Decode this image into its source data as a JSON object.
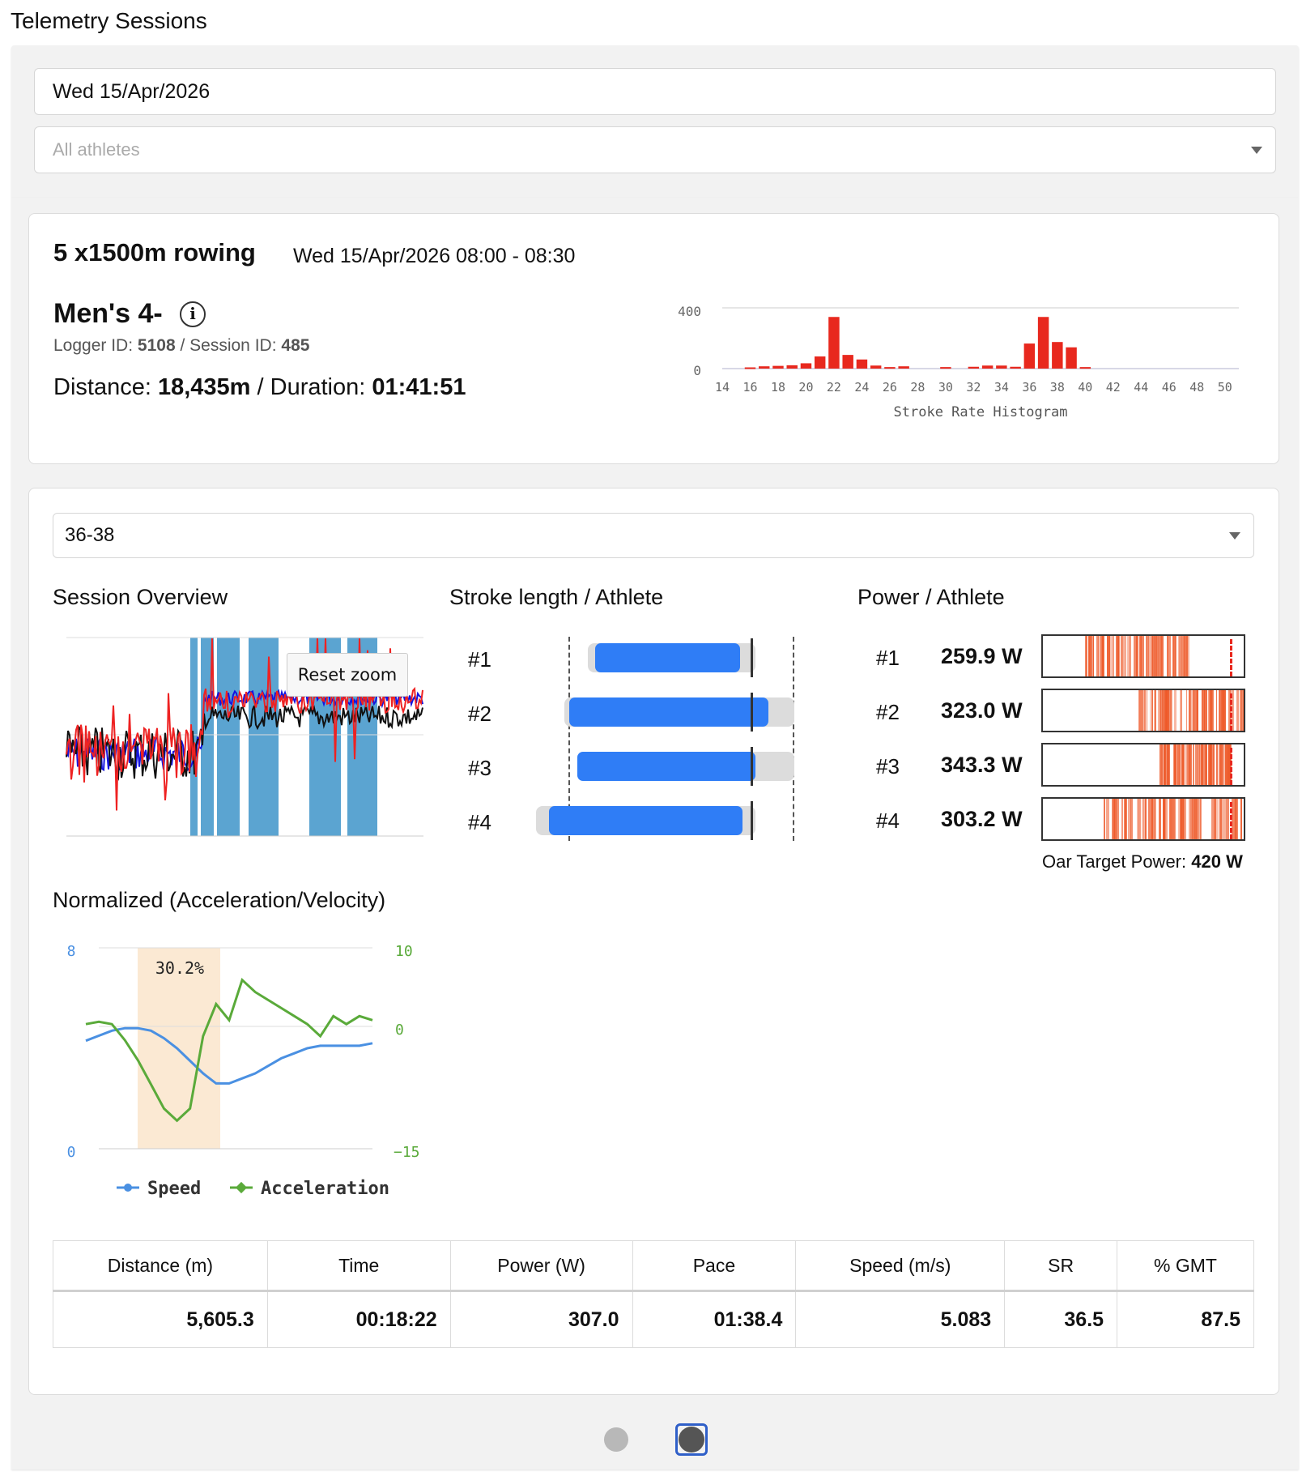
{
  "page": {
    "title": "Telemetry Sessions"
  },
  "filters": {
    "date": "Wed 15/Apr/2026",
    "athletes_placeholder": "All athletes"
  },
  "session": {
    "name": "5 x1500m rowing",
    "datetime": "Wed 15/Apr/2026 08:00 - 08:30",
    "boat": "Men's 4-",
    "logger_label": "Logger ID:",
    "logger_id": "5108",
    "sep": "/",
    "session_label": "Session ID:",
    "session_id": "485",
    "distance_label": "Distance:",
    "distance": "18,435m",
    "duration_label": "/ Duration:",
    "duration": "01:41:51"
  },
  "histogram": {
    "y_ticks": [
      "400",
      "0"
    ],
    "x_ticks": [
      "14",
      "16",
      "18",
      "20",
      "22",
      "24",
      "26",
      "28",
      "30",
      "32",
      "34",
      "36",
      "38",
      "40",
      "42",
      "44",
      "46",
      "48",
      "50"
    ],
    "xlabel": "Stroke Rate Histogram"
  },
  "chart_data": [
    {
      "type": "bar",
      "xlabel": "Stroke Rate Histogram",
      "color": "#e8281e",
      "xlim": [
        14,
        51
      ],
      "ylim": [
        0,
        400
      ],
      "x": [
        16,
        17,
        18,
        19,
        20,
        21,
        22,
        23,
        24,
        25,
        26,
        27,
        30,
        32,
        33,
        34,
        35,
        36,
        37,
        38,
        39,
        40
      ],
      "values": [
        8,
        15,
        18,
        22,
        35,
        80,
        340,
        90,
        60,
        20,
        10,
        15,
        10,
        12,
        20,
        20,
        12,
        165,
        340,
        175,
        140,
        10
      ]
    },
    {
      "type": "line",
      "title": "Normalized (Acceleration/Velocity)",
      "ylim_left": [
        0,
        8
      ],
      "ylim_right": [
        -15,
        10
      ],
      "band_label": "30.2%",
      "series": [
        {
          "name": "Speed",
          "color": "#4a90e2",
          "values": [
            4.3,
            4.5,
            4.7,
            4.8,
            4.8,
            4.7,
            4.4,
            4.0,
            3.5,
            3.0,
            2.6,
            2.6,
            2.8,
            3.0,
            3.3,
            3.6,
            3.8,
            4.0,
            4.1,
            4.1,
            4.1,
            4.1,
            4.2
          ]
        },
        {
          "name": "Acceleration",
          "color": "#5aaa3a",
          "values": [
            0.5,
            0.8,
            0.5,
            -1.5,
            -4,
            -7,
            -10,
            -11.5,
            -10,
            -1,
            3,
            1,
            6,
            4.5,
            3.5,
            2.5,
            1.5,
            0.5,
            -1,
            1.5,
            0.5,
            1.5,
            1
          ]
        }
      ]
    }
  ],
  "interval": {
    "selected": "36-38"
  },
  "overview": {
    "title": "Session Overview",
    "reset_label": "Reset zoom"
  },
  "stroke": {
    "title": "Stroke length / Athlete",
    "athletes": [
      {
        "label": "#1",
        "range_from": 0.2,
        "range_to": 0.85,
        "bar_from": 0.23,
        "bar_to": 0.79,
        "marker": 0.8
      },
      {
        "label": "#2",
        "range_from": 0.11,
        "range_to": 1.0,
        "bar_from": 0.13,
        "bar_to": 0.9,
        "marker": 0.8
      },
      {
        "label": "#3",
        "range_from": 0.16,
        "range_to": 1.0,
        "bar_from": 0.16,
        "bar_to": 0.85,
        "marker": 0.8
      },
      {
        "label": "#4",
        "range_from": 0.0,
        "range_to": 0.85,
        "bar_from": 0.05,
        "bar_to": 0.8,
        "marker": 0.8
      }
    ]
  },
  "power": {
    "title": "Power / Athlete",
    "athletes": [
      {
        "label": "#1",
        "value": "259.9 W",
        "fill_from": 0.2,
        "fill_to": 0.72
      },
      {
        "label": "#2",
        "value": "323.0 W",
        "fill_from": 0.45,
        "fill_to": 1.0
      },
      {
        "label": "#3",
        "value": "343.3 W",
        "fill_from": 0.58,
        "fill_to": 0.93
      },
      {
        "label": "#4",
        "value": "303.2 W",
        "fill_from": 0.3,
        "fill_to": 1.0
      }
    ],
    "target_label": "Oar Target Power:",
    "target_value": "420 W"
  },
  "normalized": {
    "title": "Normalized (Acceleration/Velocity)",
    "left_ticks": [
      "8",
      "0"
    ],
    "right_ticks": [
      "10",
      "0",
      "−15"
    ],
    "band_label": "30.2%",
    "legend_speed": "Speed",
    "legend_accel": "Acceleration"
  },
  "stats": {
    "headers": [
      "Distance (m)",
      "Time",
      "Power (W)",
      "Pace",
      "Speed (m/s)",
      "SR",
      "% GMT"
    ],
    "values": [
      "5,605.3",
      "00:18:22",
      "307.0",
      "01:38.4",
      "5.083",
      "36.5",
      "87.5"
    ]
  },
  "colors": {
    "accent_blue": "#2f7df6",
    "hist_red": "#e8281e",
    "power_orange": "#ee5a2a",
    "band": "#fbe9d3"
  }
}
